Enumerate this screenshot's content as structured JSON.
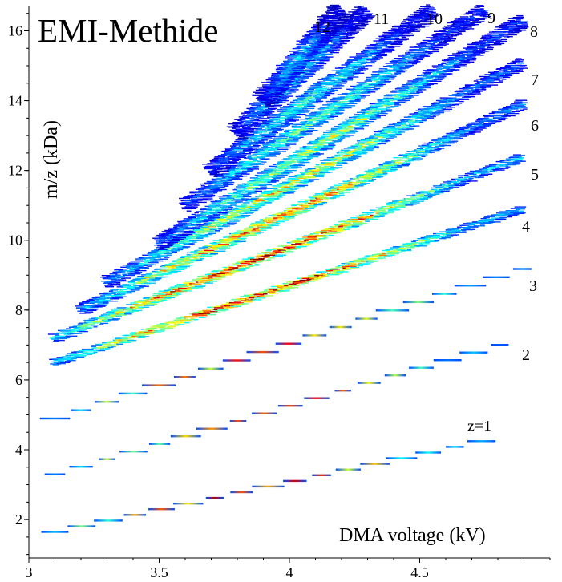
{
  "chart_data": {
    "type": "heatmap",
    "title": "EMI-Methide",
    "xlabel": "DMA voltage (kV)",
    "ylabel": "m/z (kDa)",
    "xlim": [
      3.0,
      5.0
    ],
    "ylim": [
      0.9,
      16.7
    ],
    "xticks": [
      3,
      3.5,
      4,
      4.5
    ],
    "xtick_labels": [
      "3",
      "3.5",
      "4",
      "4.5"
    ],
    "yticks": [
      2,
      4,
      6,
      8,
      10,
      12,
      14,
      16
    ],
    "ytick_labels": [
      "2",
      "4",
      "6",
      "8",
      "10",
      "12",
      "14",
      "16"
    ],
    "grid": false,
    "colormap": "jet",
    "colormap_colors": [
      "#00008f",
      "#0000ff",
      "#0080ff",
      "#00ffff",
      "#80ff80",
      "#ffff00",
      "#ff8000",
      "#ff0000",
      "#800000"
    ],
    "charge_bands": [
      {
        "label": "z=1",
        "start": [
          3.1,
          1.65
        ],
        "end": [
          4.8,
          4.35
        ],
        "peak_intensity": 0.85
      },
      {
        "label": "2",
        "start": [
          3.1,
          3.3
        ],
        "end": [
          4.85,
          7.1
        ],
        "peak_intensity": 0.8
      },
      {
        "label": "3",
        "start": [
          3.1,
          4.9
        ],
        "end": [
          4.9,
          9.2
        ],
        "peak_intensity": 0.85
      },
      {
        "label": "4",
        "start": [
          3.1,
          6.5
        ],
        "end": [
          4.9,
          10.9
        ],
        "peak_intensity": 1.0
      },
      {
        "label": "5",
        "start": [
          3.1,
          7.2
        ],
        "end": [
          4.9,
          12.4
        ],
        "peak_intensity": 1.0
      },
      {
        "label": "6",
        "start": [
          3.2,
          8.0
        ],
        "end": [
          4.9,
          13.9
        ],
        "peak_intensity": 0.85
      },
      {
        "label": "7",
        "start": [
          3.3,
          8.8
        ],
        "end": [
          4.9,
          15.1
        ],
        "peak_intensity": 0.7
      },
      {
        "label": "8",
        "start": [
          3.5,
          9.9
        ],
        "end": [
          4.9,
          16.3
        ],
        "peak_intensity": 0.6
      },
      {
        "label": "9",
        "start": [
          3.6,
          11.0
        ],
        "end": [
          4.75,
          16.6
        ],
        "peak_intensity": 0.5
      },
      {
        "label": "10",
        "start": [
          3.7,
          12.0
        ],
        "end": [
          4.55,
          16.6
        ],
        "peak_intensity": 0.45
      },
      {
        "label": "11",
        "start": [
          3.8,
          13.1
        ],
        "end": [
          4.3,
          16.6
        ],
        "peak_intensity": 0.4
      },
      {
        "label": "12",
        "start": [
          3.9,
          14.0
        ],
        "end": [
          4.2,
          16.6
        ],
        "peak_intensity": 0.35
      }
    ]
  }
}
